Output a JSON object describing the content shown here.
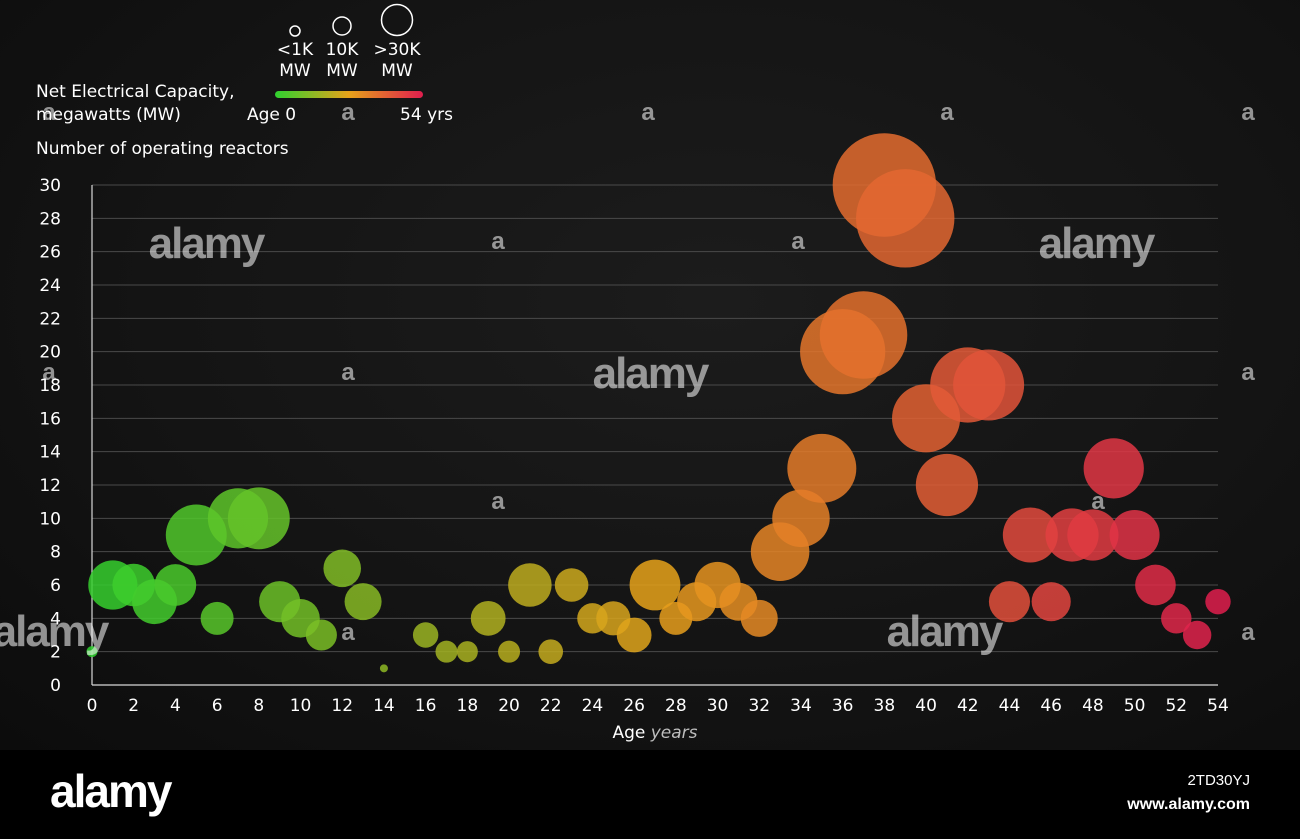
{
  "chart_data": {
    "type": "scatter",
    "title": "",
    "xlabel": "Age",
    "xlabel_unit": "years",
    "ylabel": "Number of operating reactors",
    "xlim": [
      0,
      54
    ],
    "ylim": [
      0,
      30
    ],
    "x_ticks": [
      "0",
      "2",
      "4",
      "6",
      "8",
      "10",
      "12",
      "14",
      "16",
      "18",
      "20",
      "22",
      "24",
      "26",
      "28",
      "30",
      "32",
      "34",
      "36",
      "38",
      "40",
      "42",
      "44",
      "46",
      "48",
      "50",
      "52",
      "54"
    ],
    "y_ticks": [
      "0",
      "2",
      "4",
      "6",
      "8",
      "10",
      "12",
      "14",
      "16",
      "18",
      "20",
      "22",
      "24",
      "26",
      "28",
      "30"
    ],
    "grid": true,
    "size_legend": {
      "title": "Net Electrical Capacity, megawatts (MW)",
      "entries": [
        {
          "label": "<1K",
          "unit": "MW",
          "capacity_mw": 500
        },
        {
          "label": "10K",
          "unit": "MW",
          "capacity_mw": 10000
        },
        {
          "label": ">30K",
          "unit": "MW",
          "capacity_mw": 30000
        }
      ]
    },
    "color_legend": {
      "start_label": "Age 0",
      "end_label": "54 yrs",
      "colors": [
        "#2fd12f",
        "#e6a21a",
        "#e01e4e"
      ]
    },
    "points": [
      {
        "age": 0,
        "reactors": 2,
        "capacity_mw": 300
      },
      {
        "age": 1,
        "reactors": 6,
        "capacity_mw": 6000
      },
      {
        "age": 2,
        "reactors": 6,
        "capacity_mw": 4500
      },
      {
        "age": 3,
        "reactors": 5,
        "capacity_mw": 5000
      },
      {
        "age": 4,
        "reactors": 6,
        "capacity_mw": 4300
      },
      {
        "age": 5,
        "reactors": 9,
        "capacity_mw": 9200
      },
      {
        "age": 6,
        "reactors": 4,
        "capacity_mw": 2700
      },
      {
        "age": 7,
        "reactors": 10,
        "capacity_mw": 9000
      },
      {
        "age": 8,
        "reactors": 10,
        "capacity_mw": 9500
      },
      {
        "age": 9,
        "reactors": 5,
        "capacity_mw": 4200
      },
      {
        "age": 10,
        "reactors": 4,
        "capacity_mw": 3700
      },
      {
        "age": 11,
        "reactors": 3,
        "capacity_mw": 2400
      },
      {
        "age": 12,
        "reactors": 7,
        "capacity_mw": 3500
      },
      {
        "age": 13,
        "reactors": 5,
        "capacity_mw": 3400
      },
      {
        "age": 14,
        "reactors": 1,
        "capacity_mw": 150
      },
      {
        "age": 16,
        "reactors": 3,
        "capacity_mw": 1600
      },
      {
        "age": 17,
        "reactors": 2,
        "capacity_mw": 1200
      },
      {
        "age": 18,
        "reactors": 2,
        "capacity_mw": 1100
      },
      {
        "age": 19,
        "reactors": 4,
        "capacity_mw": 3000
      },
      {
        "age": 20,
        "reactors": 2,
        "capacity_mw": 1200
      },
      {
        "age": 21,
        "reactors": 6,
        "capacity_mw": 4700
      },
      {
        "age": 22,
        "reactors": 2,
        "capacity_mw": 1500
      },
      {
        "age": 23,
        "reactors": 6,
        "capacity_mw": 2800
      },
      {
        "age": 24,
        "reactors": 4,
        "capacity_mw": 2300
      },
      {
        "age": 25,
        "reactors": 4,
        "capacity_mw": 2900
      },
      {
        "age": 26,
        "reactors": 3,
        "capacity_mw": 3000
      },
      {
        "age": 27,
        "reactors": 6,
        "capacity_mw": 6400
      },
      {
        "age": 28,
        "reactors": 4,
        "capacity_mw": 2700
      },
      {
        "age": 29,
        "reactors": 5,
        "capacity_mw": 3800
      },
      {
        "age": 30,
        "reactors": 6,
        "capacity_mw": 5300
      },
      {
        "age": 31,
        "reactors": 5,
        "capacity_mw": 3600
      },
      {
        "age": 32,
        "reactors": 4,
        "capacity_mw": 3400
      },
      {
        "age": 33,
        "reactors": 8,
        "capacity_mw": 8500
      },
      {
        "age": 34,
        "reactors": 10,
        "capacity_mw": 8200
      },
      {
        "age": 35,
        "reactors": 13,
        "capacity_mw": 11800
      },
      {
        "age": 36,
        "reactors": 20,
        "capacity_mw": 18000
      },
      {
        "age": 37,
        "reactors": 21,
        "capacity_mw": 19000
      },
      {
        "age": 38,
        "reactors": 30,
        "capacity_mw": 26500
      },
      {
        "age": 39,
        "reactors": 28,
        "capacity_mw": 24000
      },
      {
        "age": 40,
        "reactors": 16,
        "capacity_mw": 11500
      },
      {
        "age": 41,
        "reactors": 12,
        "capacity_mw": 9600
      },
      {
        "age": 42,
        "reactors": 18,
        "capacity_mw": 14000
      },
      {
        "age": 43,
        "reactors": 18,
        "capacity_mw": 12500
      },
      {
        "age": 44,
        "reactors": 5,
        "capacity_mw": 4200
      },
      {
        "age": 45,
        "reactors": 9,
        "capacity_mw": 7500
      },
      {
        "age": 46,
        "reactors": 5,
        "capacity_mw": 3800
      },
      {
        "age": 47,
        "reactors": 9,
        "capacity_mw": 7000
      },
      {
        "age": 48,
        "reactors": 9,
        "capacity_mw": 6500
      },
      {
        "age": 49,
        "reactors": 13,
        "capacity_mw": 9000
      },
      {
        "age": 50,
        "reactors": 9,
        "capacity_mw": 6200
      },
      {
        "age": 51,
        "reactors": 6,
        "capacity_mw": 4100
      },
      {
        "age": 52,
        "reactors": 4,
        "capacity_mw": 2300
      },
      {
        "age": 53,
        "reactors": 3,
        "capacity_mw": 2000
      },
      {
        "age": 54,
        "reactors": 5,
        "capacity_mw": 1600
      }
    ]
  },
  "watermark": {
    "brand": "alamy",
    "brand_short": "a",
    "image_id": "2TD30YJ",
    "url": "www.alamy.com"
  }
}
